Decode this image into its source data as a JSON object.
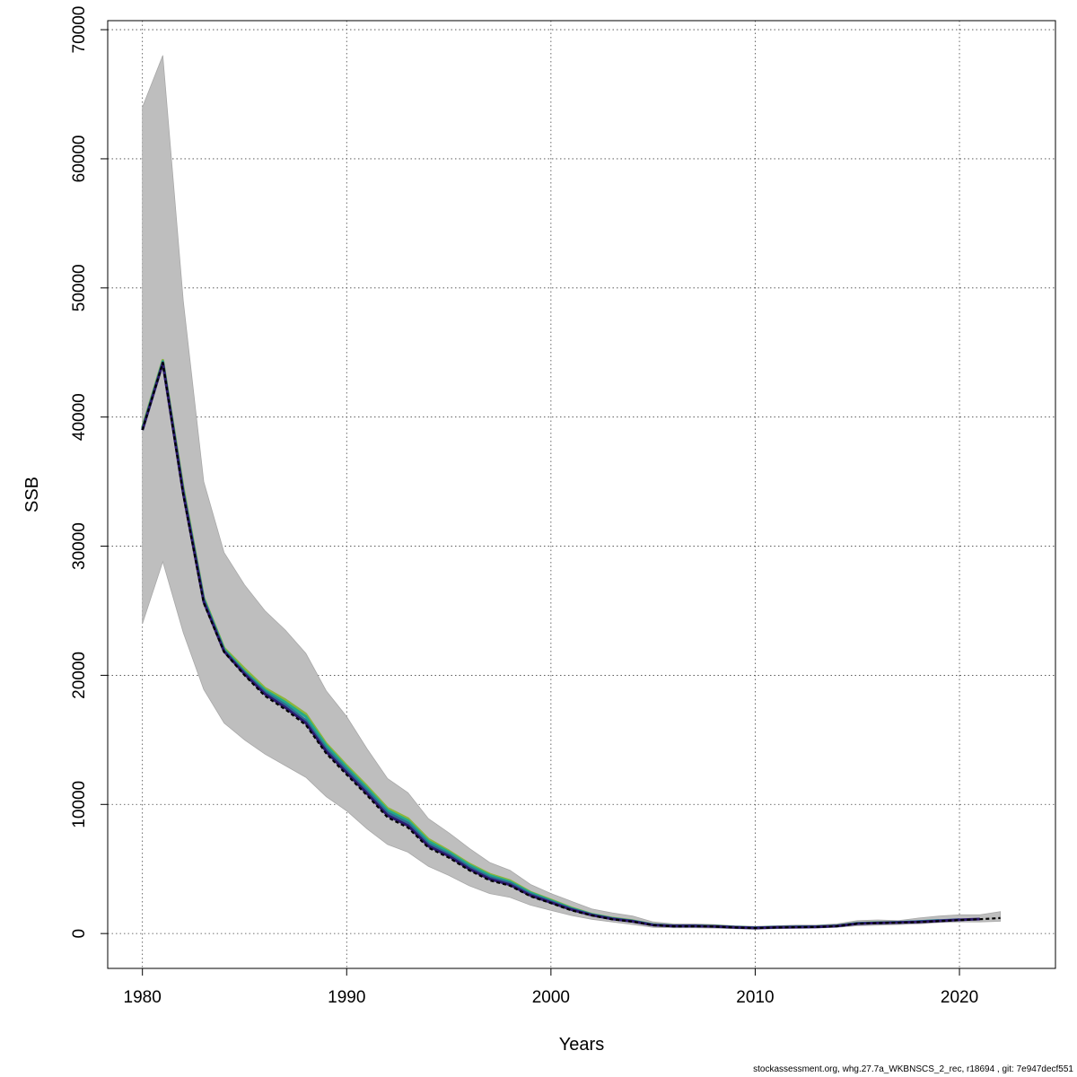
{
  "chart_data": {
    "type": "line",
    "title": "",
    "xlabel": "Years",
    "ylabel": "SSB",
    "xlim": [
      1978.3,
      2024.7
    ],
    "ylim": [
      -2700,
      70700
    ],
    "xticks": [
      1980,
      1990,
      2000,
      2010,
      2020
    ],
    "yticks": [
      0,
      10000,
      20000,
      30000,
      40000,
      50000,
      60000,
      70000
    ],
    "grid": true,
    "legend": "none",
    "band_color": "#bebebe",
    "band": {
      "x": [
        1980,
        1981,
        1982,
        1983,
        1984,
        1985,
        1986,
        1987,
        1988,
        1989,
        1990,
        1991,
        1992,
        1993,
        1994,
        1995,
        1996,
        1997,
        1998,
        1999,
        2000,
        2001,
        2002,
        2003,
        2004,
        2005,
        2006,
        2007,
        2008,
        2009,
        2010,
        2011,
        2012,
        2013,
        2014,
        2015,
        2016,
        2017,
        2018,
        2019,
        2020,
        2021,
        2022
      ],
      "upper": [
        64000,
        68000,
        49000,
        35000,
        29500,
        27000,
        25000,
        23500,
        21700,
        18800,
        16800,
        14300,
        12000,
        10900,
        8900,
        7800,
        6600,
        5500,
        4900,
        3800,
        3100,
        2500,
        1900,
        1600,
        1350,
        900,
        750,
        750,
        700,
        600,
        550,
        600,
        650,
        650,
        750,
        1000,
        1050,
        1000,
        1200,
        1350,
        1450,
        1450,
        1700
      ],
      "lower": [
        24000,
        28800,
        23300,
        18900,
        16300,
        15000,
        13900,
        13000,
        12100,
        10600,
        9500,
        8100,
        6900,
        6300,
        5200,
        4500,
        3700,
        3100,
        2800,
        2200,
        1800,
        1400,
        1100,
        900,
        700,
        480,
        450,
        450,
        420,
        380,
        330,
        380,
        400,
        420,
        480,
        600,
        650,
        700,
        750,
        850,
        900,
        900,
        950
      ]
    },
    "series": [
      {
        "color": "#8db63c",
        "x": [
          1980,
          1981,
          1982,
          1983,
          1984,
          1985,
          1986,
          1987,
          1988,
          1989,
          1990,
          1991,
          1992,
          1993,
          1994,
          1995,
          1996,
          1997,
          1998,
          1999,
          2000,
          2001,
          2002,
          2003,
          2004,
          2005,
          2006,
          2007,
          2008,
          2009,
          2010,
          2011,
          2012,
          2013,
          2014,
          2015,
          2016,
          2017
        ],
        "y": [
          39200,
          44400,
          34500,
          26000,
          22100,
          20500,
          19000,
          18100,
          17000,
          14700,
          13000,
          11400,
          9700,
          8900,
          7300,
          6400,
          5400,
          4600,
          4100,
          3200,
          2600,
          2000,
          1500,
          1200,
          1000,
          700,
          600,
          600,
          580,
          500,
          450,
          500,
          520,
          540,
          600,
          800,
          850,
          860
        ]
      },
      {
        "color": "#23a98a",
        "x": [
          1980,
          1981,
          1982,
          1983,
          1984,
          1985,
          1986,
          1987,
          1988,
          1989,
          1990,
          1991,
          1992,
          1993,
          1994,
          1995,
          1996,
          1997,
          1998,
          1999,
          2000,
          2001,
          2002,
          2003,
          2004,
          2005,
          2006,
          2007,
          2008,
          2009,
          2010,
          2011,
          2012,
          2013,
          2014,
          2015,
          2016,
          2017,
          2018,
          2019
        ],
        "y": [
          39100,
          44300,
          34300,
          25900,
          22000,
          20300,
          18850,
          17900,
          16800,
          14550,
          12850,
          11250,
          9550,
          8750,
          7150,
          6300,
          5300,
          4500,
          4000,
          3150,
          2550,
          1950,
          1480,
          1180,
          980,
          690,
          600,
          600,
          570,
          500,
          450,
          500,
          515,
          535,
          600,
          790,
          840,
          870,
          930,
          1020
        ]
      },
      {
        "color": "#2f6b95",
        "x": [
          1980,
          1981,
          1982,
          1983,
          1984,
          1985,
          1986,
          1987,
          1988,
          1989,
          1990,
          1991,
          1992,
          1993,
          1994,
          1995,
          1996,
          1997,
          1998,
          1999,
          2000,
          2001,
          2002,
          2003,
          2004,
          2005,
          2006,
          2007,
          2008,
          2009,
          2010,
          2011,
          2012,
          2013,
          2014,
          2015,
          2016,
          2017,
          2018,
          2019,
          2020
        ],
        "y": [
          39000,
          44200,
          34200,
          25800,
          21900,
          20200,
          18700,
          17700,
          16500,
          14300,
          12650,
          11050,
          9350,
          8550,
          6950,
          6150,
          5150,
          4350,
          3900,
          3050,
          2480,
          1900,
          1450,
          1150,
          960,
          680,
          590,
          590,
          560,
          490,
          440,
          490,
          510,
          530,
          590,
          780,
          830,
          860,
          920,
          1000,
          1080
        ]
      },
      {
        "color": "#2e1a6e",
        "x": [
          1980,
          1981,
          1982,
          1983,
          1984,
          1985,
          1986,
          1987,
          1988,
          1989,
          1990,
          1991,
          1992,
          1993,
          1994,
          1995,
          1996,
          1997,
          1998,
          1999,
          2000,
          2001,
          2002,
          2003,
          2004,
          2005,
          2006,
          2007,
          2008,
          2009,
          2010,
          2011,
          2012,
          2013,
          2014,
          2015,
          2016,
          2017,
          2018,
          2019,
          2020,
          2021
        ],
        "y": [
          39000,
          44200,
          34100,
          25700,
          21850,
          20100,
          18550,
          17500,
          16300,
          14100,
          12450,
          10850,
          9150,
          8350,
          6780,
          6000,
          5000,
          4220,
          3780,
          2950,
          2400,
          1850,
          1420,
          1130,
          940,
          660,
          580,
          580,
          550,
          480,
          430,
          480,
          500,
          520,
          580,
          770,
          820,
          850,
          900,
          980,
          1060,
          1120
        ]
      },
      {
        "color": "#000000",
        "dashed": true,
        "x": [
          1980,
          1981,
          1982,
          1983,
          1984,
          1985,
          1986,
          1987,
          1988,
          1989,
          1990,
          1991,
          1992,
          1993,
          1994,
          1995,
          1996,
          1997,
          1998,
          1999,
          2000,
          2001,
          2002,
          2003,
          2004,
          2005,
          2006,
          2007,
          2008,
          2009,
          2010,
          2011,
          2012,
          2013,
          2014,
          2015,
          2016,
          2017,
          2018,
          2019,
          2020,
          2021,
          2022
        ],
        "y": [
          39000,
          44200,
          34000,
          25600,
          21800,
          20000,
          18400,
          17350,
          16150,
          13950,
          12300,
          10700,
          9000,
          8200,
          6650,
          5880,
          4900,
          4120,
          3700,
          2880,
          2350,
          1800,
          1400,
          1100,
          920,
          640,
          560,
          560,
          540,
          470,
          420,
          470,
          490,
          510,
          570,
          760,
          810,
          840,
          890,
          960,
          1040,
          1110,
          1200
        ]
      }
    ]
  },
  "footer": {
    "text": "stockassessment.org, whg.27.7a_WKBNSCS_2_rec, r18694 , git: 7e947decf551"
  }
}
